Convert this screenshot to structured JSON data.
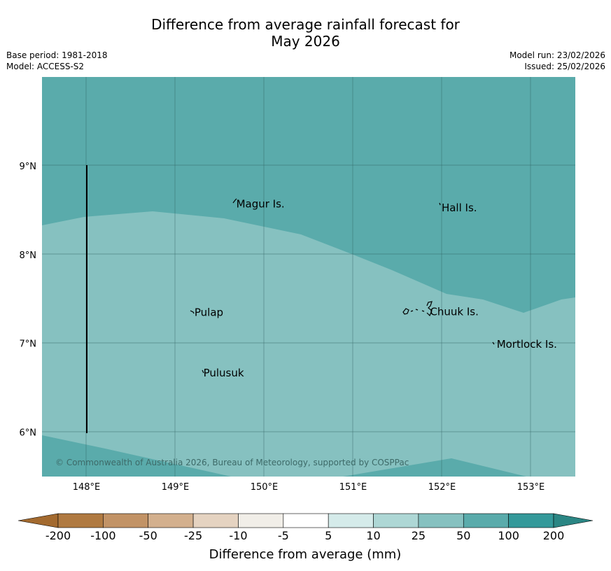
{
  "title": {
    "line1": "Difference from average rainfall forecast for",
    "line2": "May 2026"
  },
  "meta": {
    "base_period": "Base period: 1981-2018",
    "model": "Model: ACCESS-S2",
    "model_run": "Model run: 23/02/2026",
    "issued": "Issued: 25/02/2026"
  },
  "map": {
    "lon_range": [
      147.5,
      153.5
    ],
    "lat_range": [
      5.5,
      10.0
    ],
    "lon_ticks": [
      {
        "value": 148,
        "label": "148°E"
      },
      {
        "value": 149,
        "label": "149°E"
      },
      {
        "value": 150,
        "label": "150°E"
      },
      {
        "value": 151,
        "label": "151°E"
      },
      {
        "value": 152,
        "label": "152°E"
      },
      {
        "value": 153,
        "label": "153°E"
      }
    ],
    "lat_ticks": [
      {
        "value": 9,
        "label": "9°N"
      },
      {
        "value": 8,
        "label": "8°N"
      },
      {
        "value": 7,
        "label": "7°N"
      },
      {
        "value": 6,
        "label": "6°N"
      }
    ],
    "places": [
      {
        "name": "Magur Is.",
        "lon": 149.67,
        "lat": 8.56
      },
      {
        "name": "Hall Is.",
        "lon": 151.98,
        "lat": 8.52
      },
      {
        "name": "Pulap",
        "lon": 149.2,
        "lat": 7.34
      },
      {
        "name": "Chuuk Is.",
        "lon": 151.85,
        "lat": 7.35
      },
      {
        "name": "Mortlock Is.",
        "lon": 152.6,
        "lat": 6.98
      },
      {
        "name": "Pulusuk",
        "lon": 149.3,
        "lat": 6.66
      }
    ],
    "copyright": "© Commonwealth of Australia 2026, Bureau of Meteorology, supported by COSPPac",
    "colors": {
      "band_50_100": "#5aabab",
      "band_25_50": "#86c1c0",
      "gridline": "#2f5f5d"
    }
  },
  "colorbar": {
    "title": "Difference from average (mm)",
    "labels": [
      "-200",
      "-100",
      "-50",
      "-25",
      "-10",
      "-5",
      "5",
      "10",
      "25",
      "50",
      "100",
      "200"
    ],
    "colors": [
      "#a36a2f",
      "#b07a41",
      "#c29366",
      "#d3b08e",
      "#e5d3c1",
      "#f1eee8",
      "#ffffff",
      "#d5ebea",
      "#aed7d5",
      "#86c1c0",
      "#5aabab",
      "#34999a",
      "#2b8684"
    ]
  }
}
